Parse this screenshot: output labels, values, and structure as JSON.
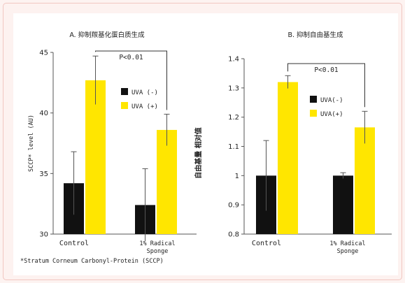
{
  "colors": {
    "black_bar": "#111111",
    "yellow_bar": "#ffe600",
    "axis": "#555555",
    "panel": "#ffffff",
    "frame": "#fdf2f0"
  },
  "footnote": "*Stratum Corneum Carbonyl-Protein (SCCP)",
  "chart_data": [
    {
      "type": "bar",
      "title": "A. 抑制羰基化蛋白质生成",
      "ylabel": "SCCP* level (AU)",
      "categories": [
        "Control",
        "1% Radical Sponge"
      ],
      "category_lines": [
        [
          "Control"
        ],
        [
          "1% Radical",
          "Sponge"
        ]
      ],
      "series": [
        {
          "name": "UVA (-)",
          "color": "#111111",
          "values": [
            34.2,
            32.4
          ],
          "errors": [
            2.6,
            3.0
          ]
        },
        {
          "name": "UVA (+)",
          "color": "#ffe600",
          "values": [
            42.7,
            38.6
          ],
          "errors": [
            2.0,
            1.3
          ]
        }
      ],
      "ylim": [
        30,
        45
      ],
      "yticks": [
        "30",
        "35",
        "40",
        "45"
      ],
      "yticks_num": [
        30,
        35,
        40,
        45
      ],
      "annotation": "P<0.01",
      "legend_position": "center-right"
    },
    {
      "type": "bar",
      "title": "B. 抑制自由基生成",
      "ylabel": "自由基量  相对值",
      "categories": [
        "Control",
        "1% Radical Sponge"
      ],
      "category_lines": [
        [
          "Control"
        ],
        [
          "1% Radical",
          "Sponge"
        ]
      ],
      "series": [
        {
          "name": "UVA(-)",
          "color": "#111111",
          "values": [
            1.0,
            1.0
          ],
          "errors": [
            0.12,
            0.01
          ]
        },
        {
          "name": "UVA(+)",
          "color": "#ffe600",
          "values": [
            1.32,
            1.165
          ],
          "errors": [
            0.022,
            0.055
          ]
        }
      ],
      "ylim": [
        0.8,
        1.4
      ],
      "yticks": [
        "0.8",
        "0.9",
        "1",
        "1.1",
        "1.2",
        "1.3",
        "1.4"
      ],
      "yticks_num": [
        0.8,
        0.9,
        1.0,
        1.1,
        1.2,
        1.3,
        1.4
      ],
      "annotation": "P<0.01",
      "legend_position": "center-right"
    }
  ]
}
